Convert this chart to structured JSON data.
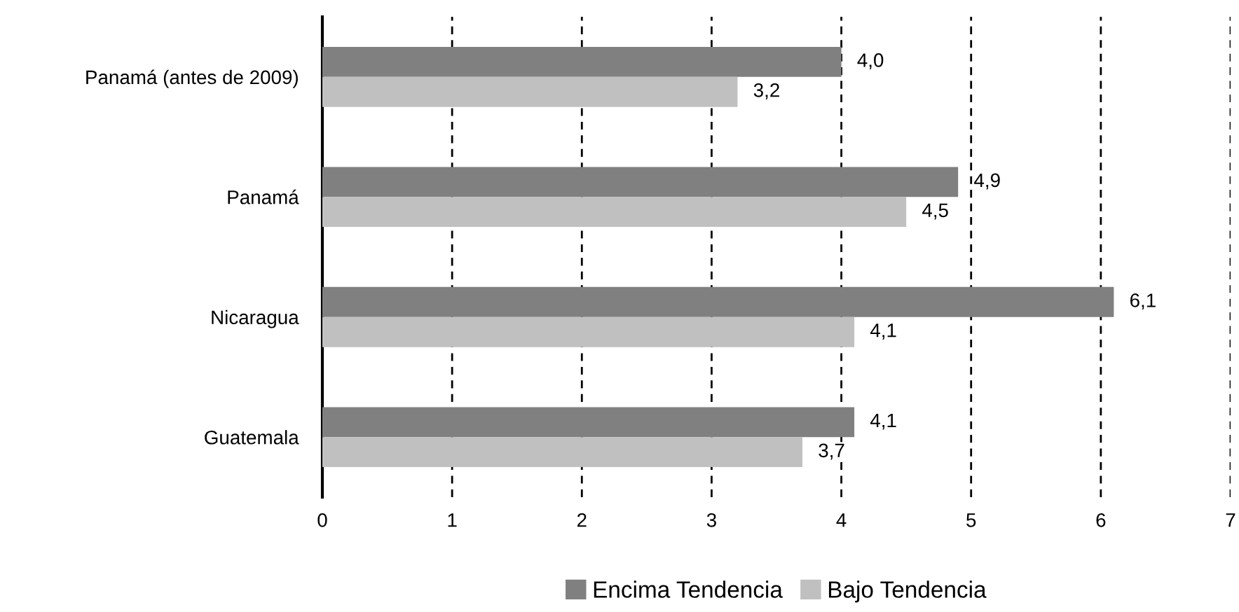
{
  "chart_data": {
    "type": "bar",
    "orientation": "horizontal",
    "categories": [
      "Panamá (antes de 2009)",
      "Panamá",
      "Nicaragua",
      "Guatemala"
    ],
    "series": [
      {
        "name": "Encima Tendencia",
        "color": "#808080",
        "values": [
          4.0,
          4.9,
          6.1,
          4.1
        ],
        "value_labels": [
          "4,0",
          "4,9",
          "6,1",
          "4,1"
        ]
      },
      {
        "name": "Bajo Tendencia",
        "color": "#c0c0c0",
        "values": [
          3.2,
          4.5,
          4.1,
          3.7
        ],
        "value_labels": [
          "3,2",
          "4,5",
          "4,1",
          "3,7"
        ]
      }
    ],
    "xlim": [
      0,
      7
    ],
    "xticks": [
      0,
      1,
      2,
      3,
      4,
      5,
      6,
      7
    ],
    "grid": "x",
    "legend": "bottom"
  }
}
